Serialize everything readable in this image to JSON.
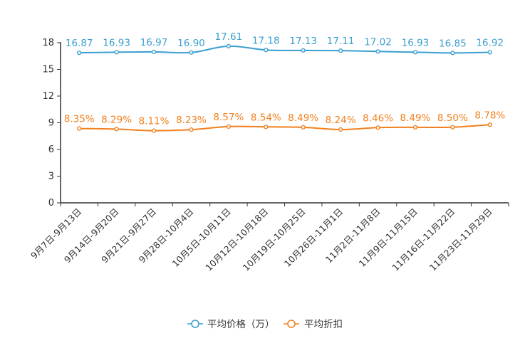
{
  "chart_data": {
    "type": "line",
    "categories": [
      "9月7日-9月13日",
      "9月14日-9月20日",
      "9月21日-9月27日",
      "9月28日-10月4日",
      "10月5日-10月11日",
      "10月12日-10月18日",
      "10月19日-10月25日",
      "10月26日-11月1日",
      "11月2日-11月8日",
      "11月9日-11月15日",
      "11月16日-11月22日",
      "11月23日-11月29日"
    ],
    "series": [
      {
        "name": "平均价格（万）",
        "color": "#3a9fd0",
        "values": [
          16.87,
          16.93,
          16.97,
          16.9,
          17.61,
          17.18,
          17.13,
          17.11,
          17.02,
          16.93,
          16.85,
          16.92
        ],
        "labels": [
          "16.87",
          "16.93",
          "16.97",
          "16.90",
          "17.61",
          "17.18",
          "17.13",
          "17.11",
          "17.02",
          "16.93",
          "16.85",
          "16.92"
        ]
      },
      {
        "name": "平均折扣",
        "color": "#f2801e",
        "values": [
          8.35,
          8.29,
          8.11,
          8.23,
          8.57,
          8.54,
          8.49,
          8.24,
          8.46,
          8.49,
          8.5,
          8.78
        ],
        "labels": [
          "8.35%",
          "8.29%",
          "8.11%",
          "8.23%",
          "8.57%",
          "8.54%",
          "8.49%",
          "8.24%",
          "8.46%",
          "8.49%",
          "8.50%",
          "8.78%"
        ]
      }
    ],
    "yticks": [
      "0",
      "3",
      "6",
      "9",
      "12",
      "15",
      "18"
    ],
    "ylim": [
      0,
      18
    ],
    "title": "",
    "xlabel": "",
    "ylabel": "",
    "legend_position": "bottom"
  }
}
